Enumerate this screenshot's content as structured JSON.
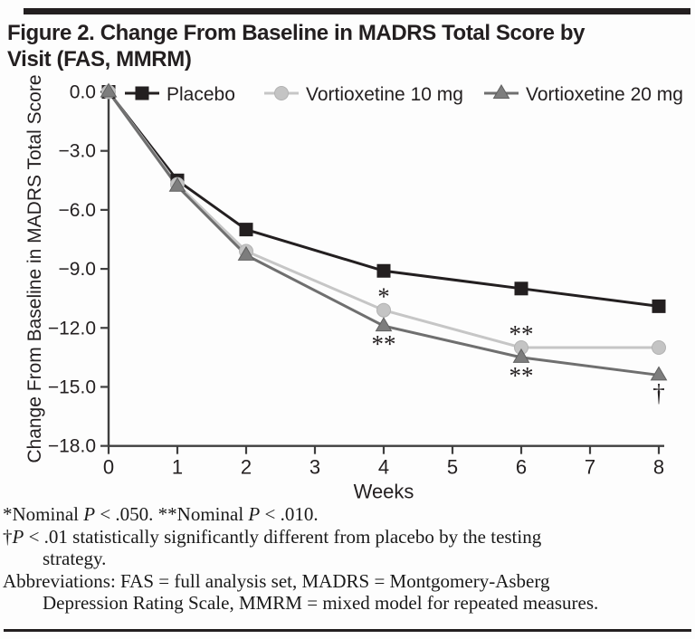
{
  "figure": {
    "title_line1": "Figure 2. Change From Baseline in MADRS Total Score by",
    "title_line2": "Visit (FAS, MMRM)"
  },
  "chart_data": {
    "type": "line",
    "x": [
      0,
      1,
      2,
      4,
      6,
      8
    ],
    "xlabel": "Weeks",
    "ylabel": "Change From Baseline in MADRS Total Score",
    "xlim": [
      0,
      8
    ],
    "ylim": [
      -18,
      0
    ],
    "xticks": [
      "0",
      "1",
      "2",
      "3",
      "4",
      "5",
      "6",
      "7",
      "8"
    ],
    "xtick_values": [
      0,
      1,
      2,
      3,
      4,
      5,
      6,
      7,
      8
    ],
    "yticks": [
      "0.0",
      "−3.0",
      "−6.0",
      "−9.0",
      "−12.0",
      "−15.0",
      "−18.0"
    ],
    "ytick_values": [
      0,
      -3,
      -6,
      -9,
      -12,
      -15,
      -18
    ],
    "grid": false,
    "legend_position": "top",
    "series": [
      {
        "name": "Placebo",
        "marker": "square",
        "color": "#231f20",
        "line_color": "#231f20",
        "values": [
          0.0,
          -4.5,
          -7.0,
          -9.1,
          -10.0,
          -10.9
        ]
      },
      {
        "name": "Vortioxetine 10 mg",
        "marker": "circle",
        "color": "#c4c4c4",
        "line_color": "#c6c6c6",
        "values": [
          0.0,
          -4.7,
          -8.1,
          -11.1,
          -13.0,
          -13.0
        ]
      },
      {
        "name": "Vortioxetine 20 mg",
        "marker": "triangle",
        "color": "#7d7d7d",
        "line_color": "#6f6f6f",
        "values": [
          0.0,
          -4.8,
          -8.3,
          -11.9,
          -13.5,
          -14.4
        ]
      }
    ],
    "annotations": [
      {
        "x": 4,
        "series": 1,
        "text": "*",
        "placement": "above"
      },
      {
        "x": 4,
        "series": 2,
        "text": "**",
        "placement": "below"
      },
      {
        "x": 6,
        "series": 1,
        "text": "**",
        "placement": "above"
      },
      {
        "x": 6,
        "series": 2,
        "text": "**",
        "placement": "below"
      },
      {
        "x": 8,
        "series": 2,
        "text": "†",
        "placement": "below"
      }
    ],
    "axis_color": "#3f3f3f"
  },
  "footnotes": {
    "line1": [
      {
        "t": "*Nominal "
      },
      {
        "t": "P",
        "i": true
      },
      {
        "t": " < .050.  **Nominal "
      },
      {
        "t": "P",
        "i": true
      },
      {
        "t": " < .010."
      }
    ],
    "line2": [
      {
        "t": "†"
      },
      {
        "t": "P",
        "i": true
      },
      {
        "t": " < .01 statistically significantly different from placebo by the testing"
      }
    ],
    "line3": [
      {
        "t": "strategy."
      }
    ],
    "line4": [
      {
        "t": "Abbreviations: FAS = full analysis set, MADRS = Montgomery-Asberg"
      }
    ],
    "line5": [
      {
        "t": "Depression Rating Scale, MMRM = mixed model for repeated measures."
      }
    ]
  }
}
